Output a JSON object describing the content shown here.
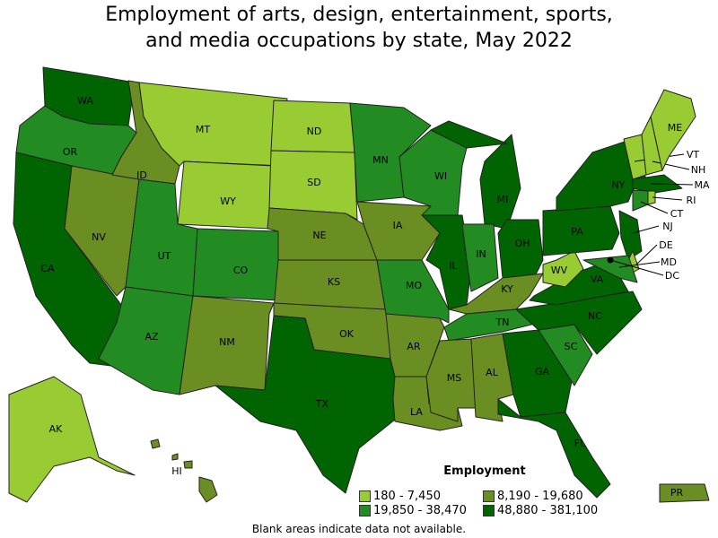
{
  "title": {
    "line1": "Employment of arts, design, entertainment, sports,",
    "line2": "and media occupations by state, May 2022"
  },
  "colors": {
    "1": "#99cc33",
    "2": "#6b8e23",
    "3": "#228b22",
    "4": "#006400"
  },
  "legend": {
    "title": "Employment",
    "items": [
      {
        "label": "180 - 7,450",
        "category": 1
      },
      {
        "label": "8,190 - 19,680",
        "category": 2
      },
      {
        "label": "19,850 - 38,470",
        "category": 3
      },
      {
        "label": "48,880 - 381,100",
        "category": 4
      }
    ]
  },
  "states": [
    {
      "abbr": "WA",
      "category": 4
    },
    {
      "abbr": "OR",
      "category": 3
    },
    {
      "abbr": "CA",
      "category": 4
    },
    {
      "abbr": "NV",
      "category": 2
    },
    {
      "abbr": "ID",
      "category": 2
    },
    {
      "abbr": "MT",
      "category": 1
    },
    {
      "abbr": "WY",
      "category": 1
    },
    {
      "abbr": "UT",
      "category": 3
    },
    {
      "abbr": "CO",
      "category": 3
    },
    {
      "abbr": "AZ",
      "category": 3
    },
    {
      "abbr": "NM",
      "category": 2
    },
    {
      "abbr": "ND",
      "category": 1
    },
    {
      "abbr": "SD",
      "category": 1
    },
    {
      "abbr": "NE",
      "category": 2
    },
    {
      "abbr": "KS",
      "category": 2
    },
    {
      "abbr": "OK",
      "category": 2
    },
    {
      "abbr": "TX",
      "category": 4
    },
    {
      "abbr": "MN",
      "category": 3
    },
    {
      "abbr": "IA",
      "category": 2
    },
    {
      "abbr": "MO",
      "category": 3
    },
    {
      "abbr": "AR",
      "category": 2
    },
    {
      "abbr": "LA",
      "category": 2
    },
    {
      "abbr": "WI",
      "category": 3
    },
    {
      "abbr": "IL",
      "category": 4
    },
    {
      "abbr": "MI",
      "category": 4
    },
    {
      "abbr": "IN",
      "category": 3
    },
    {
      "abbr": "OH",
      "category": 4
    },
    {
      "abbr": "KY",
      "category": 2
    },
    {
      "abbr": "TN",
      "category": 3
    },
    {
      "abbr": "MS",
      "category": 2
    },
    {
      "abbr": "AL",
      "category": 2
    },
    {
      "abbr": "GA",
      "category": 4
    },
    {
      "abbr": "FL",
      "category": 4
    },
    {
      "abbr": "SC",
      "category": 3
    },
    {
      "abbr": "NC",
      "category": 4
    },
    {
      "abbr": "VA",
      "category": 4
    },
    {
      "abbr": "WV",
      "category": 1
    },
    {
      "abbr": "PA",
      "category": 4
    },
    {
      "abbr": "NY",
      "category": 4
    },
    {
      "abbr": "VT",
      "category": 1
    },
    {
      "abbr": "NH",
      "category": 1
    },
    {
      "abbr": "ME",
      "category": 1
    },
    {
      "abbr": "MA",
      "category": 4
    },
    {
      "abbr": "CT",
      "category": 3
    },
    {
      "abbr": "RI",
      "category": 1
    },
    {
      "abbr": "NJ",
      "category": 4
    },
    {
      "abbr": "DE",
      "category": 1
    },
    {
      "abbr": "MD",
      "category": 3
    },
    {
      "abbr": "DC",
      "category": 4
    },
    {
      "abbr": "AK",
      "category": 1
    },
    {
      "abbr": "HI",
      "category": 2
    },
    {
      "abbr": "PR",
      "category": 2
    }
  ],
  "note": "Blank areas indicate data not available."
}
